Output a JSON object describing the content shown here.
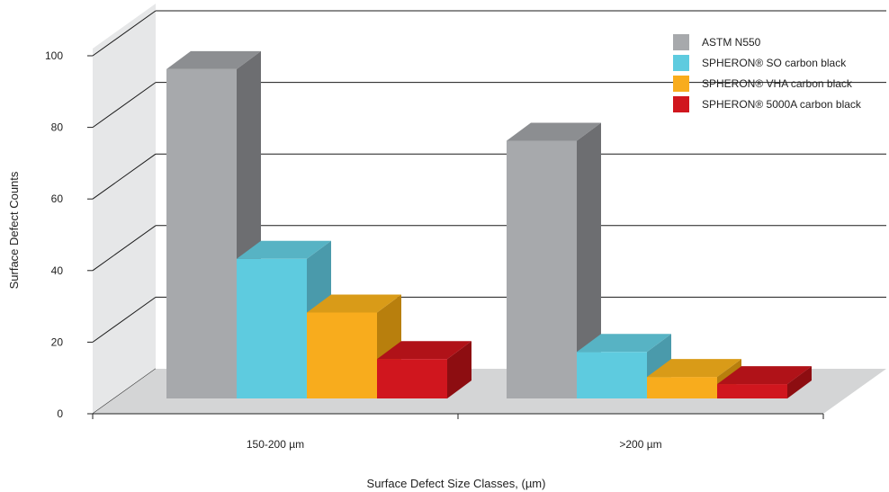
{
  "chart_data": {
    "type": "bar",
    "variant": "3d-grouped",
    "title": "",
    "xlabel": "Surface Defect Size Classes, (µm)",
    "ylabel": "Surface Defect Counts",
    "ylim": [
      0,
      100
    ],
    "yticks": [
      0,
      20,
      40,
      60,
      80,
      100
    ],
    "grid": true,
    "legend_position": "top-right",
    "categories": [
      "150-200 µm",
      ">200 µm"
    ],
    "series": [
      {
        "name": "ASTM N550",
        "values": [
          92,
          72
        ],
        "color": "#a7a9ac",
        "side_color": "#6d6e71",
        "top_color": "#8c8e91"
      },
      {
        "name": "SPHERON® SO carbon black",
        "values": [
          39,
          13
        ],
        "color": "#5ecbdf",
        "side_color": "#4a9aab",
        "top_color": "#57b3c4"
      },
      {
        "name": "SPHERON® VHA carbon black",
        "values": [
          24,
          6
        ],
        "color": "#f8ac1d",
        "side_color": "#b87f0d",
        "top_color": "#d99b18"
      },
      {
        "name": "SPHERON® 5000A carbon black",
        "values": [
          11,
          4
        ],
        "color": "#d0161e",
        "side_color": "#8d0d11",
        "top_color": "#b01218"
      }
    ]
  }
}
